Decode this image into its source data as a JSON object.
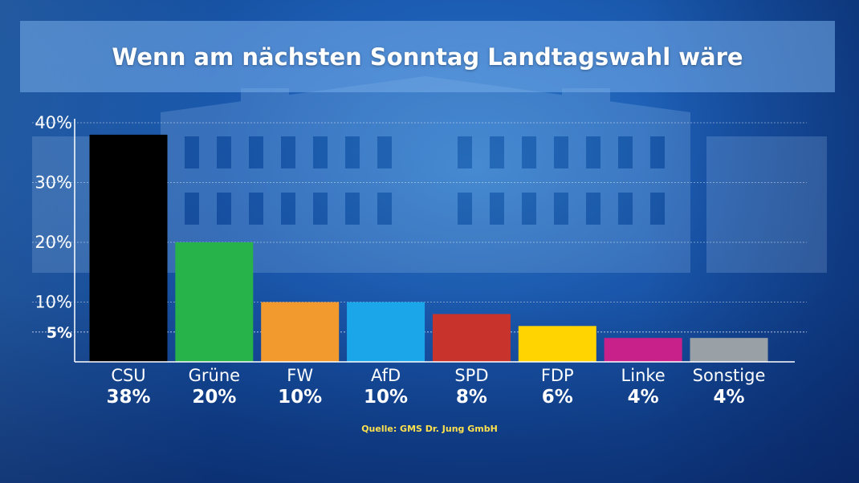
{
  "chart_data": {
    "type": "bar",
    "title": "Wenn am nächsten Sonntag Landtagswahl wäre",
    "categories": [
      "CSU",
      "Grüne",
      "FW",
      "AfD",
      "SPD",
      "FDP",
      "Linke",
      "Sonstige"
    ],
    "values": [
      38,
      20,
      10,
      10,
      8,
      6,
      4,
      4
    ],
    "value_labels": [
      "38%",
      "20%",
      "10%",
      "10%",
      "8%",
      "6%",
      "4%",
      "4%"
    ],
    "colors": [
      "#000000",
      "#27b24a",
      "#f39a2e",
      "#1aa6e8",
      "#c8342b",
      "#ffd400",
      "#c8218a",
      "#9aa1a6"
    ],
    "yticks": [
      {
        "value": 40,
        "label": "40%"
      },
      {
        "value": 30,
        "label": "30%"
      },
      {
        "value": 20,
        "label": "20%"
      },
      {
        "value": 10,
        "label": "10%"
      },
      {
        "value": 5,
        "label": "5%",
        "emphasis": true
      }
    ],
    "ylim": [
      0,
      40
    ],
    "grid": true,
    "threshold_line": 5,
    "source": "Quelle: GMS Dr. Jung GmbH"
  }
}
